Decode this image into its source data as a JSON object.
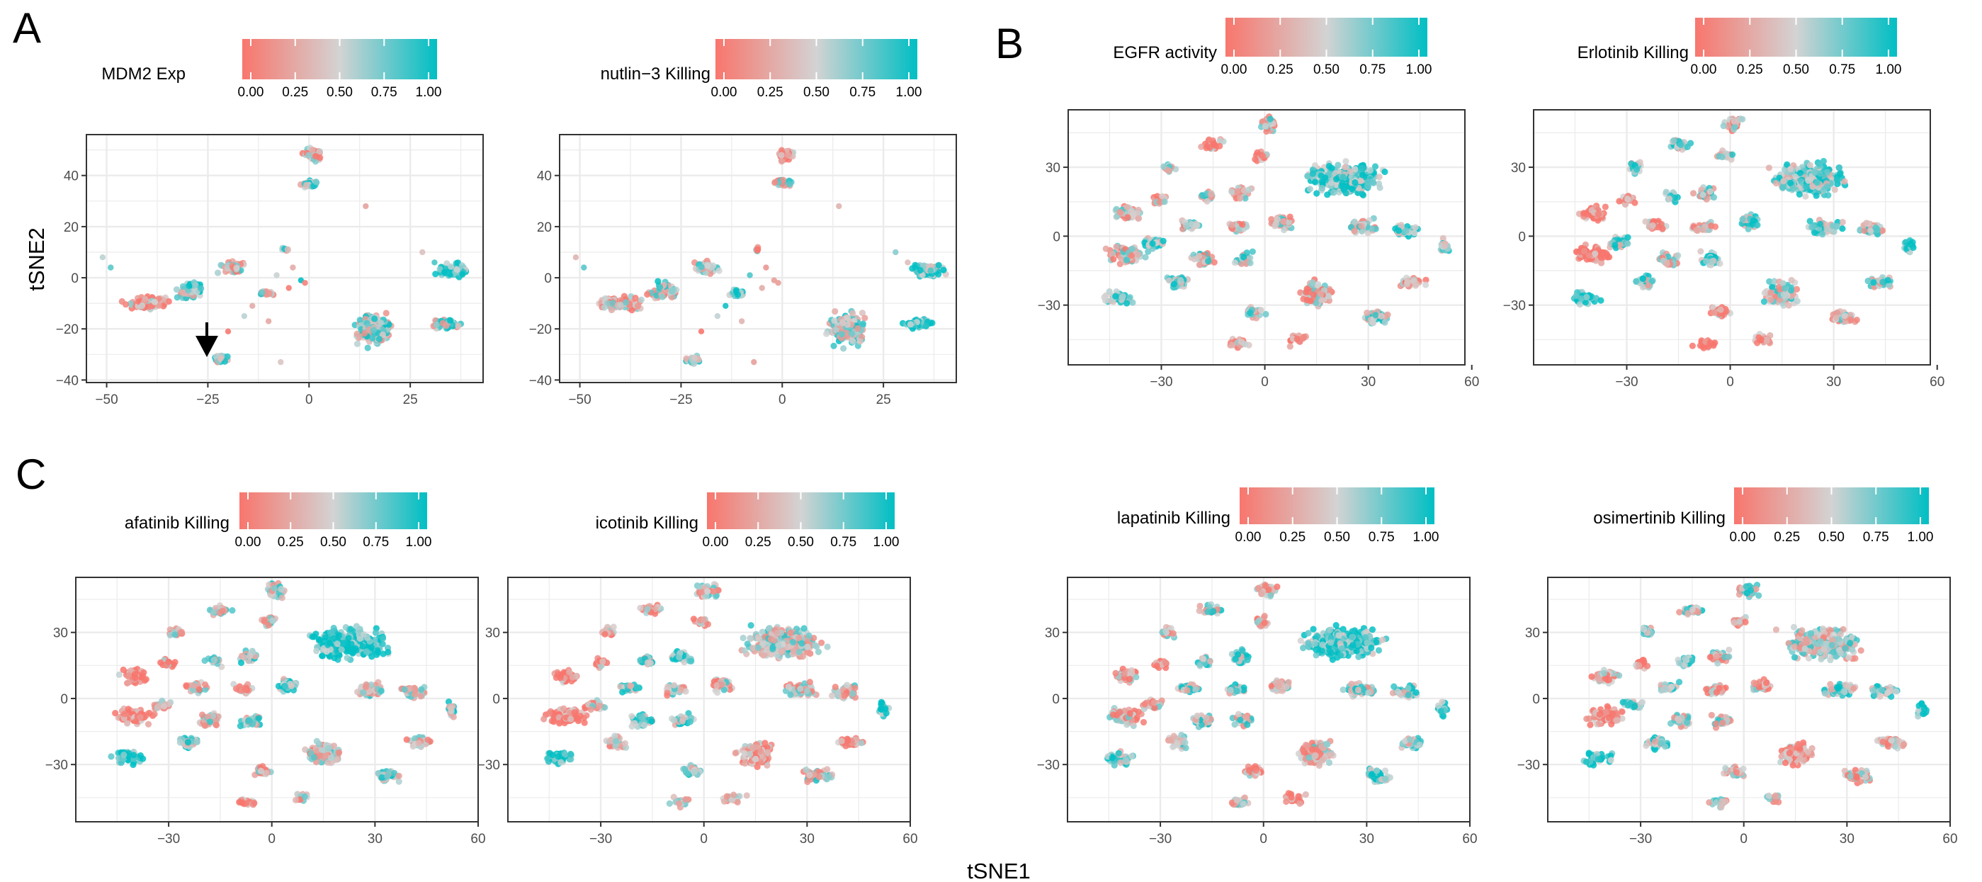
{
  "figure": {
    "panel_letters": [
      "A",
      "B",
      "C"
    ],
    "xlabel": "tSNE1",
    "ylabel": "tSNE2",
    "colormap": {
      "low": "#F8766D",
      "mid": "#D3D3D3",
      "high": "#00BFC4"
    },
    "legend_ticks": [
      "0.00",
      "0.25",
      "0.50",
      "0.75",
      "1.00"
    ]
  },
  "chart_data": [
    {
      "type": "scatter",
      "id": "A1",
      "legend_title": "MDM2  Exp",
      "xlim": [
        -55,
        43
      ],
      "ylim": [
        -41,
        56
      ],
      "xticks": [
        -50,
        -25,
        0,
        25
      ],
      "xtick_labels": [
        "−50",
        "−25",
        "0",
        "25"
      ],
      "yticks": [
        -40,
        -20,
        0,
        20,
        40
      ],
      "ytick_labels": [
        "−40",
        "−20",
        "0",
        "20",
        "40"
      ],
      "annotation": "arrow pointing at cluster near (-25, -33)"
    },
    {
      "type": "scatter",
      "id": "A2",
      "legend_title": "nutlin−3 Killing",
      "xlim": [
        -55,
        43
      ],
      "ylim": [
        -41,
        56
      ],
      "xticks": [
        -50,
        -25,
        0,
        25
      ],
      "xtick_labels": [
        "−50",
        "−25",
        "0",
        "25"
      ],
      "yticks": [
        -40,
        -20,
        0,
        20,
        40
      ],
      "ytick_labels": [
        "−40",
        "−20",
        "0",
        "20",
        "40"
      ]
    },
    {
      "type": "scatter",
      "id": "B1",
      "legend_title": "EGFR activity",
      "xlim": [
        -57,
        58
      ],
      "ylim": [
        -56,
        55
      ],
      "xticks": [
        -30,
        0,
        30,
        60
      ],
      "xtick_labels": [
        "−30",
        "0",
        "30",
        "60"
      ],
      "yticks": [
        -30,
        0,
        30
      ],
      "ytick_labels": [
        "−30",
        "0",
        "30"
      ]
    },
    {
      "type": "scatter",
      "id": "B2",
      "legend_title": "Erlotinib Killing",
      "xlim": [
        -57,
        58
      ],
      "ylim": [
        -56,
        55
      ],
      "xticks": [
        -30,
        0,
        30,
        60
      ],
      "xtick_labels": [
        "−30",
        "0",
        "30",
        "60"
      ],
      "yticks": [
        -30,
        0,
        30
      ],
      "ytick_labels": [
        "−30",
        "0",
        "30"
      ]
    },
    {
      "type": "scatter",
      "id": "C1",
      "legend_title": "afatinib Killing",
      "xlim": [
        -57,
        60
      ],
      "ylim": [
        -56,
        55
      ],
      "xticks": [
        -30,
        0,
        30,
        60
      ],
      "xtick_labels": [
        "−30",
        "0",
        "30",
        "60"
      ],
      "yticks": [
        -30,
        0,
        30
      ],
      "ytick_labels": [
        "−30",
        "0",
        "30"
      ]
    },
    {
      "type": "scatter",
      "id": "C2",
      "legend_title": "icotinib Killing",
      "xlim": [
        -57,
        60
      ],
      "ylim": [
        -56,
        55
      ],
      "xticks": [
        -30,
        0,
        30,
        60
      ],
      "xtick_labels": [
        "−30",
        "0",
        "30",
        "60"
      ],
      "yticks": [
        -30,
        0,
        30
      ],
      "ytick_labels": [
        "−30",
        "0",
        "30"
      ]
    },
    {
      "type": "scatter",
      "id": "C3",
      "legend_title": "lapatinib Killing",
      "xlim": [
        -57,
        60
      ],
      "ylim": [
        -56,
        55
      ],
      "xticks": [
        -30,
        0,
        30,
        60
      ],
      "xtick_labels": [
        "−30",
        "0",
        "30",
        "60"
      ],
      "yticks": [
        -30,
        0,
        30
      ],
      "ytick_labels": [
        "−30",
        "0",
        "30"
      ]
    },
    {
      "type": "scatter",
      "id": "C4",
      "legend_title": "osimertinib Killing",
      "xlim": [
        -57,
        60
      ],
      "ylim": [
        -56,
        55
      ],
      "xticks": [
        -30,
        0,
        30,
        60
      ],
      "xtick_labels": [
        "−30",
        "0",
        "30",
        "60"
      ],
      "yticks": [
        -30,
        0,
        30
      ],
      "ytick_labels": [
        "−30",
        "0",
        "30"
      ]
    }
  ]
}
